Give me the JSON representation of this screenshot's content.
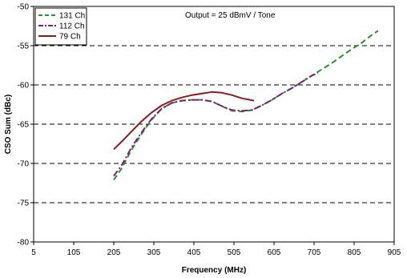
{
  "chart_data": {
    "type": "line",
    "title": "",
    "annotation": "Output = 25 dBmV / Tone",
    "xlabel": "Frequency (MHz)",
    "ylabel": "CSO Sum (dBc)",
    "xlim": [
      5,
      905
    ],
    "ylim": [
      -80,
      -50
    ],
    "xticks": [
      5,
      105,
      205,
      305,
      405,
      505,
      605,
      705,
      805,
      905
    ],
    "yticks": [
      -50,
      -55,
      -60,
      -65,
      -70,
      -75,
      -80
    ],
    "grid": "horizontal dashed",
    "legend_position": "top-left",
    "series": [
      {
        "name": "131 Ch",
        "color": "#2e8b2e",
        "dash": "dashed",
        "x": [
          205,
          225,
          250,
          275,
          300,
          325,
          350,
          375,
          400,
          425,
          450,
          475,
          500,
          525,
          550,
          575,
          600,
          625,
          650,
          675,
          700,
          725,
          750,
          775,
          800,
          825,
          850,
          865
        ],
        "y": [
          -72.1,
          -70.6,
          -68.2,
          -66.2,
          -64.4,
          -63.0,
          -62.3,
          -62.0,
          -61.9,
          -61.9,
          -62.1,
          -62.7,
          -63.3,
          -63.4,
          -63.2,
          -62.6,
          -61.9,
          -61.1,
          -60.4,
          -59.6,
          -58.8,
          -58.0,
          -57.2,
          -56.3,
          -55.4,
          -54.6,
          -53.6,
          -53.1
        ]
      },
      {
        "name": "112 Ch",
        "color": "#7b1e7a",
        "dash": "dashdot",
        "x": [
          205,
          225,
          250,
          275,
          300,
          325,
          350,
          375,
          400,
          425,
          450,
          475,
          500,
          525,
          550,
          575,
          600,
          625,
          650,
          675,
          700,
          715
        ],
        "y": [
          -71.6,
          -70.2,
          -67.9,
          -66.0,
          -64.3,
          -63.0,
          -62.3,
          -62.0,
          -61.9,
          -61.9,
          -62.1,
          -62.7,
          -63.2,
          -63.3,
          -63.2,
          -62.6,
          -61.9,
          -61.1,
          -60.4,
          -59.6,
          -58.8,
          -58.5
        ]
      },
      {
        "name": "79 Ch",
        "color": "#8b1c1c",
        "dash": "solid",
        "x": [
          205,
          225,
          250,
          275,
          300,
          325,
          350,
          375,
          400,
          425,
          450,
          475,
          500,
          525,
          555
        ],
        "y": [
          -68.2,
          -67.2,
          -65.9,
          -64.6,
          -63.5,
          -62.6,
          -62.0,
          -61.6,
          -61.3,
          -61.1,
          -60.9,
          -61.0,
          -61.3,
          -61.7,
          -62.0
        ]
      }
    ]
  }
}
